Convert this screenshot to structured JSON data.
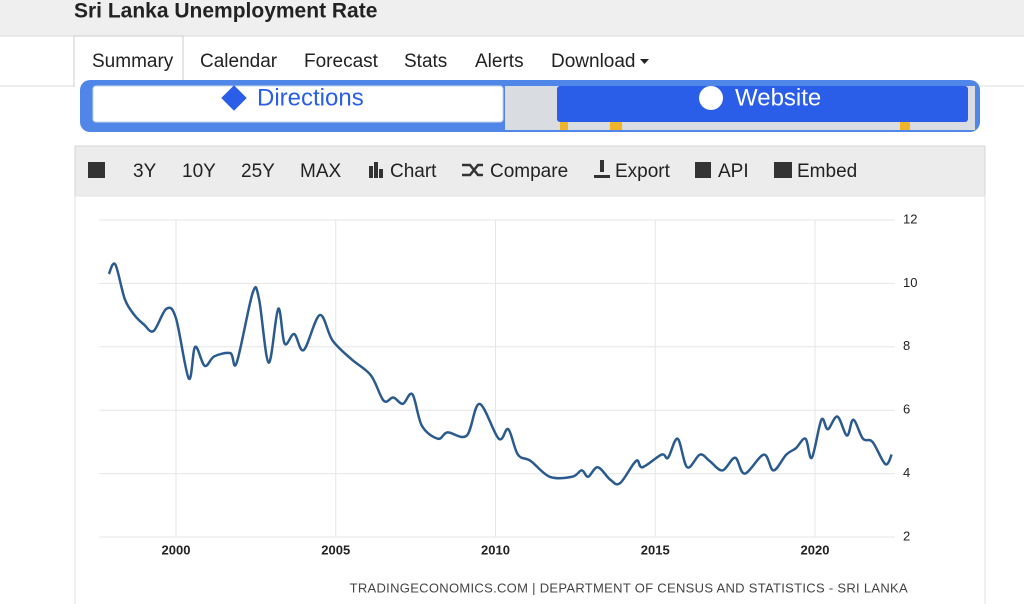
{
  "header": {
    "title": "Sri Lanka Unemployment Rate"
  },
  "tabs": [
    "Summary",
    "Calendar",
    "Forecast",
    "Stats",
    "Alerts",
    "Download"
  ],
  "banner": {
    "directions": "Directions",
    "website": "Website"
  },
  "toolbar": [
    "3Y",
    "10Y",
    "25Y",
    "MAX",
    "Chart",
    "Compare",
    "Export",
    "API",
    "Embed"
  ],
  "chart_data": {
    "type": "line",
    "color": "#2b5b8e",
    "grid": true,
    "source": "TRADINGECONOMICS.COM | DEPARTMENT OF CENSUS AND STATISTICS - SRI LANKA",
    "x": [
      1997.9,
      1998.1,
      1998.4,
      1998.7,
      1999.0,
      1999.3,
      1999.7,
      2000.0,
      2000.4,
      2000.6,
      2000.9,
      2001.2,
      2001.7,
      2001.9,
      2002.4,
      2002.6,
      2002.9,
      2003.2,
      2003.4,
      2003.7,
      2004.0,
      2004.5,
      2004.9,
      2005.5,
      2006.1,
      2006.5,
      2006.8,
      2007.1,
      2007.4,
      2007.7,
      2008.2,
      2008.5,
      2009.1,
      2009.5,
      2010.1,
      2010.4,
      2010.7,
      2011.1,
      2011.7,
      2012.4,
      2012.7,
      2012.9,
      2013.2,
      2013.6,
      2013.9,
      2014.4,
      2014.6,
      2015.2,
      2015.4,
      2015.7,
      2016.0,
      2016.4,
      2016.7,
      2017.1,
      2017.5,
      2017.8,
      2018.4,
      2018.7,
      2019.1,
      2019.4,
      2019.7,
      2019.9,
      2020.2,
      2020.4,
      2020.7,
      2021.0,
      2021.2,
      2021.5,
      2021.8,
      2022.2,
      2022.4
    ],
    "values": [
      10.3,
      10.6,
      9.5,
      9.0,
      8.7,
      8.5,
      9.2,
      8.9,
      7.0,
      8.0,
      7.4,
      7.7,
      7.8,
      7.5,
      9.7,
      9.5,
      7.5,
      9.2,
      8.1,
      8.4,
      7.9,
      9.0,
      8.2,
      7.6,
      7.1,
      6.3,
      6.4,
      6.2,
      6.5,
      5.5,
      5.1,
      5.3,
      5.2,
      6.2,
      5.1,
      5.4,
      4.6,
      4.4,
      3.9,
      3.9,
      4.1,
      3.9,
      4.2,
      3.8,
      3.7,
      4.4,
      4.2,
      4.6,
      4.5,
      5.1,
      4.2,
      4.6,
      4.4,
      4.1,
      4.5,
      4.0,
      4.6,
      4.1,
      4.6,
      4.8,
      5.1,
      4.5,
      5.7,
      5.4,
      5.8,
      5.2,
      5.7,
      5.1,
      5.0,
      4.3,
      4.6
    ],
    "xlim": [
      1997.6,
      2022.5
    ],
    "xticks": [
      2000,
      2005,
      2010,
      2015,
      2020
    ],
    "ylim": [
      2,
      12
    ],
    "yticks": [
      2,
      4,
      6,
      8,
      10,
      12
    ]
  }
}
